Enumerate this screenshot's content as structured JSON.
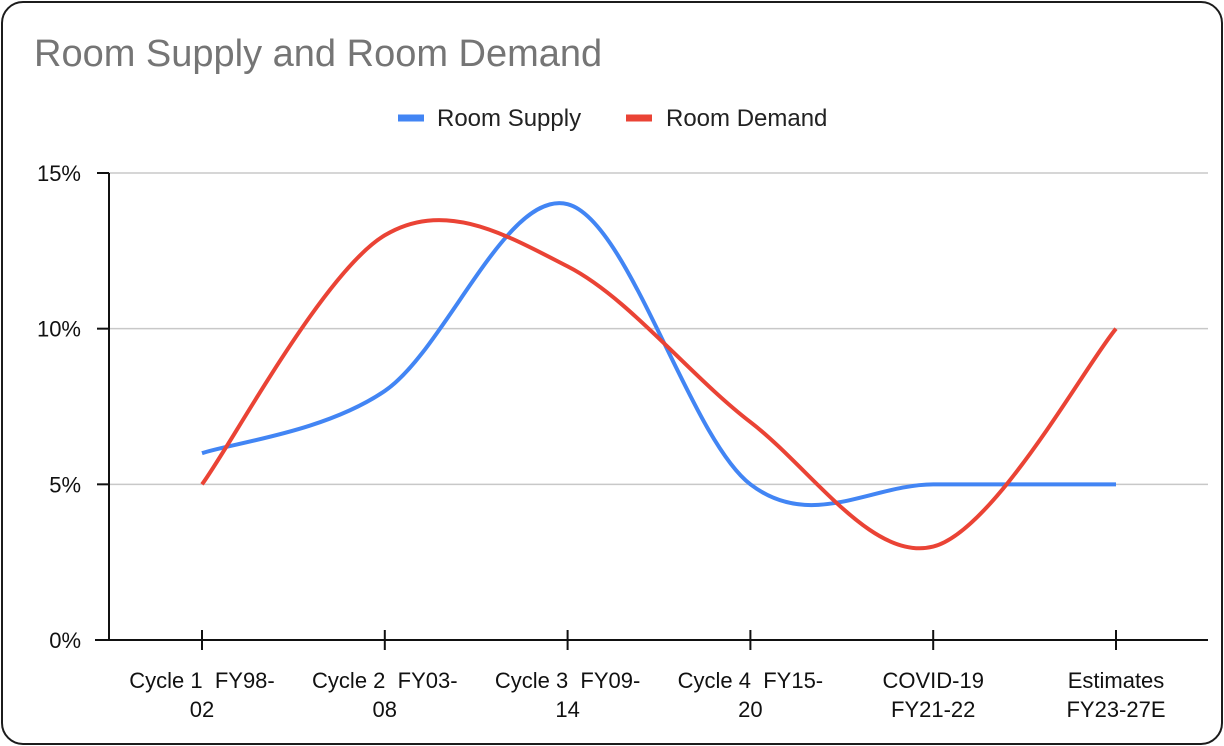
{
  "chart_data": {
    "type": "line",
    "title": "Room Supply and Room Demand",
    "categories": [
      [
        "Cycle 1  FY98-",
        "02"
      ],
      [
        "Cycle 2  FY03-",
        "08"
      ],
      [
        "Cycle 3  FY09-",
        "14"
      ],
      [
        "Cycle 4  FY15-",
        "20"
      ],
      [
        "COVID-19",
        "FY21-22"
      ],
      [
        "Estimates",
        "FY23-27E"
      ]
    ],
    "series": [
      {
        "name": "Room Supply",
        "values": [
          6,
          8,
          14,
          5,
          5,
          5
        ],
        "color": "#4285F4"
      },
      {
        "name": "Room Demand",
        "values": [
          5,
          13,
          12,
          7,
          3,
          10
        ],
        "color": "#EA4335"
      }
    ],
    "ylim": [
      0,
      15
    ],
    "yticks": [
      "0%",
      "5%",
      "10%",
      "15%"
    ],
    "grid": true,
    "legend_position": "top",
    "curve": "smooth"
  }
}
